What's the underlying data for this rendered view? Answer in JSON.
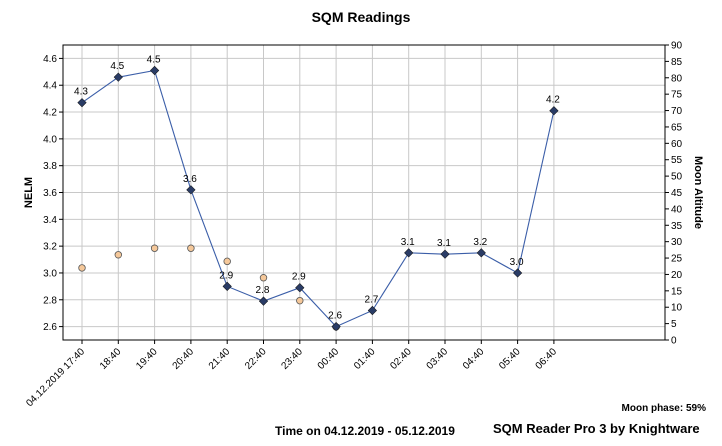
{
  "chart_data": {
    "type": "line",
    "title": "SQM Readings",
    "xlabel": "Time on 04.12.2019 - 05.12.2019",
    "ylabel": "NELM",
    "y2label": "Moon Altitude",
    "ylim": [
      2.5,
      4.7
    ],
    "y2lim": [
      0,
      90
    ],
    "yticks": [
      "2.6",
      "2.8",
      "3.0",
      "3.2",
      "3.4",
      "3.6",
      "3.8",
      "4.0",
      "4.2",
      "4.4",
      "4.6"
    ],
    "y2ticks": [
      "0",
      "5",
      "10",
      "15",
      "20",
      "25",
      "30",
      "35",
      "40",
      "45",
      "50",
      "55",
      "60",
      "65",
      "70",
      "75",
      "80",
      "85",
      "90"
    ],
    "xticks": [
      "04.12.2019 17:40",
      "18:40",
      "19:40",
      "20:40",
      "21:40",
      "22:40",
      "23:40",
      "00:40",
      "01:40",
      "02:40",
      "03:40",
      "04:40",
      "05:40",
      "06:40"
    ],
    "grid": true,
    "legend": "none",
    "series": [
      {
        "role": "nelm",
        "axis": "left",
        "color": "#3b5ea8",
        "marker_color": "#2a3c66",
        "x": [
          "17:40",
          "18:40",
          "19:40",
          "20:40",
          "21:40",
          "22:40",
          "23:40",
          "00:40",
          "01:40",
          "02:40",
          "03:40",
          "04:40",
          "05:40",
          "06:40"
        ],
        "values": [
          4.27,
          4.46,
          4.51,
          3.62,
          2.9,
          2.79,
          2.89,
          2.6,
          2.72,
          3.15,
          3.14,
          3.15,
          3.0,
          4.21
        ],
        "labels": [
          "4.3",
          "4.5",
          "4.5",
          "3.6",
          "2.9",
          "2.8",
          "2.9",
          "2.6",
          "2.7",
          "3.1",
          "3.1",
          "3.2",
          "3.0",
          "4.2"
        ]
      },
      {
        "role": "moon",
        "axis": "right",
        "color": "#f5c89a",
        "x": [
          "17:40",
          "18:40",
          "19:40",
          "20:40",
          "21:40",
          "22:40",
          "23:40",
          "00:40"
        ],
        "values": [
          22,
          26,
          28,
          28,
          24,
          19,
          12,
          4
        ]
      }
    ]
  },
  "footer": {
    "moon_phase": "Moon phase: 59%",
    "credit": "SQM Reader Pro 3 by Knightware"
  }
}
